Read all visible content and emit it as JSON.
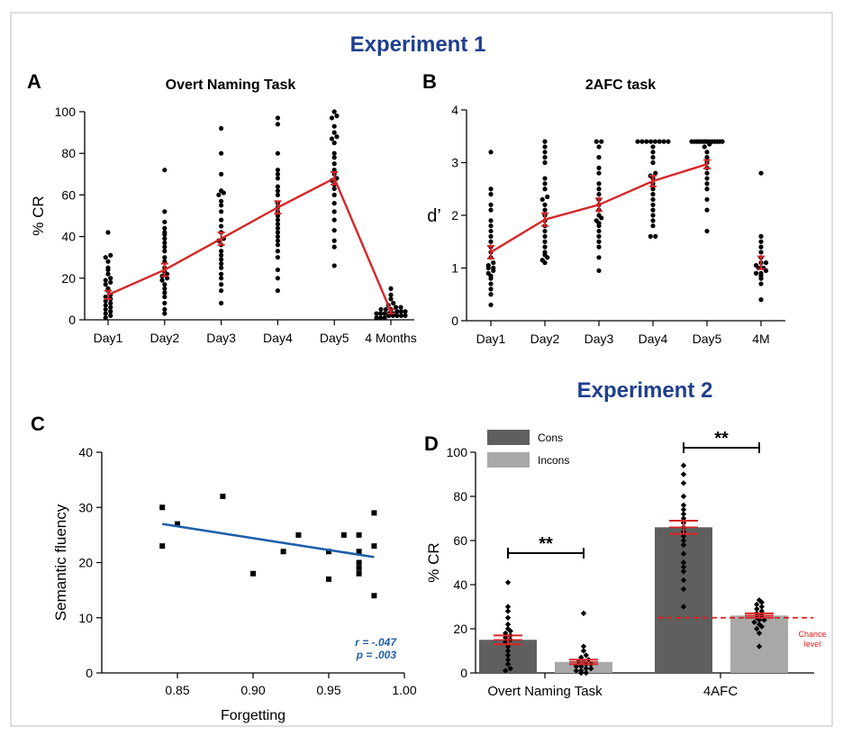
{
  "figure": {
    "exp1_title": "Experiment 1",
    "exp2_title": "Experiment 2",
    "heading_color": "#1f3f8f"
  },
  "chart_data": [
    {
      "panel": "A",
      "type": "scatter",
      "title": "Overt Naming Task",
      "ylabel": "% CR",
      "categories": [
        "Day1",
        "Day2",
        "Day3",
        "Day4",
        "Day5",
        "4 Months"
      ],
      "ylim": [
        0,
        100
      ],
      "yticks": [
        0,
        20,
        40,
        60,
        80,
        100
      ],
      "points": [
        [
          1,
          2,
          3,
          4,
          5,
          6,
          7,
          8,
          9,
          10,
          11,
          12,
          14,
          15,
          17,
          18,
          19,
          20,
          22,
          24,
          25,
          28,
          30,
          31,
          42
        ],
        [
          3,
          5,
          8,
          11,
          13,
          15,
          17,
          19,
          20,
          21,
          22,
          23,
          25,
          28,
          30,
          33,
          35,
          37,
          39,
          41,
          42,
          44,
          47,
          52,
          72
        ],
        [
          8,
          14,
          17,
          20,
          22,
          25,
          27,
          29,
          31,
          33,
          36,
          38,
          39,
          42,
          45,
          48,
          52,
          55,
          57,
          60,
          61,
          62,
          70,
          80,
          92
        ],
        [
          14,
          20,
          24,
          30,
          33,
          36,
          38,
          40,
          42,
          44,
          46,
          48,
          50,
          52,
          54,
          56,
          60,
          62,
          64,
          68,
          70,
          72,
          80,
          94,
          97
        ],
        [
          26,
          35,
          38,
          43,
          48,
          52,
          56,
          60,
          63,
          65,
          67,
          68,
          70,
          72,
          75,
          78,
          80,
          85,
          87,
          88,
          90,
          93,
          97,
          98,
          100
        ],
        [
          1,
          1,
          1,
          2,
          2,
          2,
          2,
          2,
          3,
          3,
          3,
          3,
          3,
          4,
          4,
          4,
          5,
          5,
          5,
          6,
          6,
          7,
          8,
          10,
          12,
          15
        ]
      ],
      "mean": [
        12,
        24,
        39,
        54,
        68,
        4
      ],
      "sem": [
        2,
        3,
        3,
        3,
        3,
        1
      ],
      "trend_color": "#d62728"
    },
    {
      "panel": "B",
      "type": "scatter",
      "title": "2AFC task",
      "ylabel": "d’",
      "categories": [
        "Day1",
        "Day2",
        "Day3",
        "Day4",
        "Day5",
        "4M"
      ],
      "ylim": [
        0,
        4
      ],
      "yticks": [
        0,
        1,
        2,
        3,
        4
      ],
      "points": [
        [
          0.3,
          0.5,
          0.6,
          0.7,
          0.8,
          0.85,
          0.9,
          0.95,
          1.0,
          1.0,
          1.05,
          1.1,
          1.2,
          1.3,
          1.4,
          1.5,
          1.6,
          1.7,
          1.8,
          1.9,
          2.1,
          2.2,
          2.4,
          2.5,
          3.2
        ],
        [
          1.1,
          1.15,
          1.2,
          1.25,
          1.3,
          1.4,
          1.5,
          1.6,
          1.7,
          1.8,
          1.9,
          2.0,
          2.1,
          2.2,
          2.3,
          2.35,
          2.5,
          2.6,
          2.7,
          3.0,
          3.1,
          3.2,
          3.3,
          3.4
        ],
        [
          0.95,
          1.2,
          1.4,
          1.5,
          1.6,
          1.7,
          1.8,
          1.85,
          1.9,
          1.95,
          2.0,
          2.1,
          2.2,
          2.3,
          2.4,
          2.5,
          2.6,
          2.8,
          2.9,
          3.1,
          3.3,
          3.4,
          3.4
        ],
        [
          1.6,
          1.6,
          1.8,
          1.9,
          2.0,
          2.1,
          2.2,
          2.3,
          2.4,
          2.5,
          2.6,
          2.7,
          2.75,
          2.8,
          3.0,
          3.1,
          3.2,
          3.3,
          3.4,
          3.4,
          3.4,
          3.4,
          3.4,
          3.4,
          3.4,
          3.4
        ],
        [
          1.7,
          2.1,
          2.3,
          2.5,
          2.6,
          2.7,
          2.8,
          2.9,
          3.0,
          3.1,
          3.2,
          3.3,
          3.35,
          3.4,
          3.4,
          3.4,
          3.4,
          3.4,
          3.4,
          3.4,
          3.4,
          3.4,
          3.4,
          3.4,
          3.4,
          3.4
        ],
        [
          0.4,
          0.7,
          0.8,
          0.85,
          0.9,
          0.9,
          0.95,
          1.0,
          1.0,
          1.05,
          1.1,
          1.1,
          1.2,
          1.3,
          1.4,
          1.5,
          1.6,
          2.8
        ]
      ],
      "mean": [
        1.3,
        1.92,
        2.2,
        2.65,
        2.97,
        1.1
      ],
      "sem": [
        0.12,
        0.12,
        0.12,
        0.1,
        0.08,
        0.12
      ],
      "trend_color": "#d62728"
    },
    {
      "panel": "C",
      "type": "scatter",
      "xlabel": "Forgetting",
      "ylabel": "Semantic fluency",
      "xlim": [
        0.8,
        1.0
      ],
      "ylim": [
        0,
        40
      ],
      "xticks": [
        0.85,
        0.9,
        0.95,
        1.0
      ],
      "xtick_labels": [
        "0.85",
        "0.90",
        "0.95",
        "1.00"
      ],
      "yticks": [
        0,
        10,
        20,
        30,
        40
      ],
      "points": [
        [
          0.84,
          30
        ],
        [
          0.84,
          23
        ],
        [
          0.85,
          27
        ],
        [
          0.88,
          32
        ],
        [
          0.9,
          18
        ],
        [
          0.92,
          22
        ],
        [
          0.93,
          25
        ],
        [
          0.95,
          22
        ],
        [
          0.95,
          17
        ],
        [
          0.96,
          25
        ],
        [
          0.97,
          25
        ],
        [
          0.97,
          22
        ],
        [
          0.97,
          20
        ],
        [
          0.97,
          19
        ],
        [
          0.97,
          18
        ],
        [
          0.98,
          29
        ],
        [
          0.98,
          23
        ],
        [
          0.98,
          14
        ]
      ],
      "fit_line": {
        "x": [
          0.84,
          0.98
        ],
        "y": [
          27,
          21
        ]
      },
      "annotation_r": "r = -.047",
      "annotation_p": "p = .003",
      "line_color": "#1f5fa8"
    },
    {
      "panel": "D",
      "type": "bar",
      "ylabel": "% CR",
      "categories": [
        "Overt Naming Task",
        "4AFC"
      ],
      "ylim": [
        0,
        100
      ],
      "yticks": [
        0,
        20,
        40,
        60,
        80,
        100
      ],
      "series": [
        {
          "name": "Cons",
          "values": [
            15,
            66
          ],
          "sem": [
            2,
            3
          ],
          "color": "#5f5f5f",
          "points": [
            [
              1,
              2,
              4,
              6,
              8,
              10,
              12,
              14,
              15,
              16,
              17,
              18,
              19,
              20,
              22,
              25,
              28,
              30,
              41
            ],
            [
              30,
              38,
              42,
              46,
              48,
              50,
              54,
              58,
              60,
              62,
              64,
              66,
              68,
              70,
              72,
              74,
              76,
              80,
              86,
              90,
              94
            ]
          ]
        },
        {
          "name": "Incons",
          "values": [
            5,
            26
          ],
          "sem": [
            1,
            1
          ],
          "color": "#a8a8a8",
          "points": [
            [
              0,
              0,
              1,
              1,
              2,
              2,
              3,
              3,
              4,
              4,
              5,
              5,
              6,
              7,
              8,
              10,
              12,
              27
            ],
            [
              12,
              18,
              20,
              21,
              22,
              23,
              24,
              24,
              25,
              26,
              27,
              28,
              29,
              30,
              31,
              32,
              33
            ]
          ]
        }
      ],
      "significance": [
        "**",
        "**"
      ],
      "chance_value": 25,
      "chance_label_1": "Chance",
      "chance_label_2": "level",
      "error_color": "#d62728"
    }
  ]
}
